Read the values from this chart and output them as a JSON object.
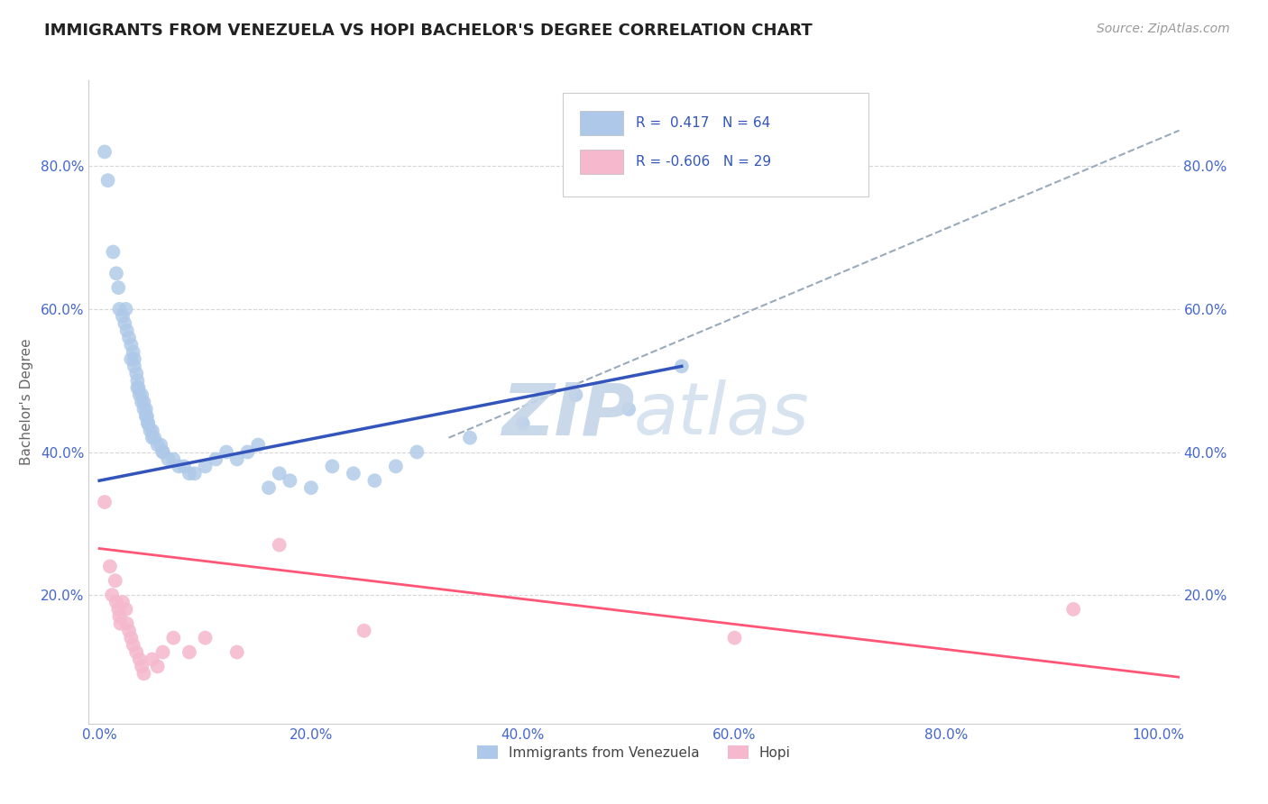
{
  "title": "IMMIGRANTS FROM VENEZUELA VS HOPI BACHELOR'S DEGREE CORRELATION CHART",
  "source": "Source: ZipAtlas.com",
  "ylabel": "Bachelor's Degree",
  "x_tick_labels": [
    "0.0%",
    "20.0%",
    "40.0%",
    "60.0%",
    "80.0%",
    "100.0%"
  ],
  "x_tick_vals": [
    0.0,
    0.2,
    0.4,
    0.6,
    0.8,
    1.0
  ],
  "y_tick_labels": [
    "20.0%",
    "40.0%",
    "60.0%",
    "80.0%"
  ],
  "y_tick_vals": [
    0.2,
    0.4,
    0.6,
    0.8
  ],
  "xlim": [
    -0.01,
    1.02
  ],
  "ylim": [
    0.02,
    0.92
  ],
  "legend_label1": "Immigrants from Venezuela",
  "legend_label2": "Hopi",
  "legend_r1": "R =  0.417",
  "legend_n1": "N = 64",
  "legend_r2": "R = -0.606",
  "legend_n2": "N = 29",
  "color_blue": "#adc8e8",
  "color_pink": "#f5b8cc",
  "line_blue": "#3355bb",
  "line_pink": "#ff5577",
  "line_dashed_color": "#99aabb",
  "background": "#ffffff",
  "blue_scatter": [
    [
      0.005,
      0.82
    ],
    [
      0.008,
      0.78
    ],
    [
      0.013,
      0.68
    ],
    [
      0.016,
      0.65
    ],
    [
      0.018,
      0.63
    ],
    [
      0.019,
      0.6
    ],
    [
      0.025,
      0.6
    ],
    [
      0.022,
      0.59
    ],
    [
      0.026,
      0.57
    ],
    [
      0.028,
      0.56
    ],
    [
      0.024,
      0.58
    ],
    [
      0.03,
      0.55
    ],
    [
      0.032,
      0.54
    ],
    [
      0.03,
      0.53
    ],
    [
      0.033,
      0.53
    ],
    [
      0.033,
      0.52
    ],
    [
      0.035,
      0.51
    ],
    [
      0.036,
      0.5
    ],
    [
      0.036,
      0.49
    ],
    [
      0.037,
      0.49
    ],
    [
      0.038,
      0.48
    ],
    [
      0.04,
      0.48
    ],
    [
      0.04,
      0.47
    ],
    [
      0.042,
      0.47
    ],
    [
      0.042,
      0.46
    ],
    [
      0.044,
      0.46
    ],
    [
      0.044,
      0.45
    ],
    [
      0.045,
      0.45
    ],
    [
      0.046,
      0.44
    ],
    [
      0.046,
      0.44
    ],
    [
      0.048,
      0.43
    ],
    [
      0.05,
      0.43
    ],
    [
      0.05,
      0.42
    ],
    [
      0.052,
      0.42
    ],
    [
      0.055,
      0.41
    ],
    [
      0.058,
      0.41
    ],
    [
      0.06,
      0.4
    ],
    [
      0.06,
      0.4
    ],
    [
      0.065,
      0.39
    ],
    [
      0.07,
      0.39
    ],
    [
      0.075,
      0.38
    ],
    [
      0.08,
      0.38
    ],
    [
      0.085,
      0.37
    ],
    [
      0.09,
      0.37
    ],
    [
      0.1,
      0.38
    ],
    [
      0.11,
      0.39
    ],
    [
      0.12,
      0.4
    ],
    [
      0.13,
      0.39
    ],
    [
      0.14,
      0.4
    ],
    [
      0.15,
      0.41
    ],
    [
      0.16,
      0.35
    ],
    [
      0.17,
      0.37
    ],
    [
      0.18,
      0.36
    ],
    [
      0.2,
      0.35
    ],
    [
      0.22,
      0.38
    ],
    [
      0.24,
      0.37
    ],
    [
      0.26,
      0.36
    ],
    [
      0.28,
      0.38
    ],
    [
      0.3,
      0.4
    ],
    [
      0.35,
      0.42
    ],
    [
      0.4,
      0.44
    ],
    [
      0.45,
      0.48
    ],
    [
      0.5,
      0.46
    ],
    [
      0.55,
      0.52
    ]
  ],
  "pink_scatter": [
    [
      0.005,
      0.33
    ],
    [
      0.01,
      0.24
    ],
    [
      0.012,
      0.2
    ],
    [
      0.015,
      0.22
    ],
    [
      0.016,
      0.19
    ],
    [
      0.018,
      0.18
    ],
    [
      0.019,
      0.17
    ],
    [
      0.02,
      0.16
    ],
    [
      0.022,
      0.19
    ],
    [
      0.025,
      0.18
    ],
    [
      0.026,
      0.16
    ],
    [
      0.028,
      0.15
    ],
    [
      0.03,
      0.14
    ],
    [
      0.032,
      0.13
    ],
    [
      0.035,
      0.12
    ],
    [
      0.038,
      0.11
    ],
    [
      0.04,
      0.1
    ],
    [
      0.042,
      0.09
    ],
    [
      0.05,
      0.11
    ],
    [
      0.055,
      0.1
    ],
    [
      0.06,
      0.12
    ],
    [
      0.07,
      0.14
    ],
    [
      0.085,
      0.12
    ],
    [
      0.1,
      0.14
    ],
    [
      0.13,
      0.12
    ],
    [
      0.17,
      0.27
    ],
    [
      0.25,
      0.15
    ],
    [
      0.6,
      0.14
    ],
    [
      0.92,
      0.18
    ]
  ],
  "blue_trendline": [
    [
      0.0,
      0.36
    ],
    [
      0.55,
      0.52
    ]
  ],
  "dashed_line": [
    [
      0.33,
      0.42
    ],
    [
      1.02,
      0.85
    ]
  ],
  "pink_trendline": [
    [
      0.0,
      0.265
    ],
    [
      1.02,
      0.085
    ]
  ],
  "watermark_zip_color": "#c5d5e8",
  "watermark_atlas_color": "#c8d8ea",
  "title_fontsize": 13,
  "axis_fontsize": 11,
  "tick_fontsize": 11,
  "source_fontsize": 10
}
